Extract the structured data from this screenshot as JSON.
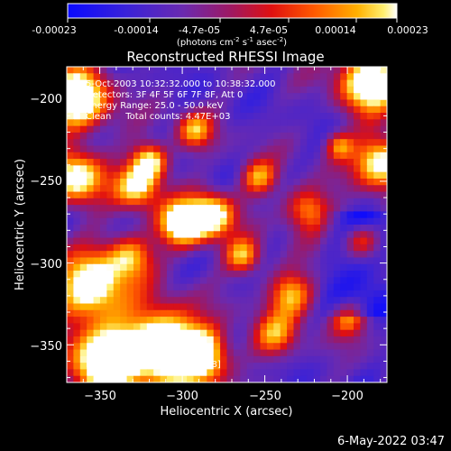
{
  "colors": {
    "background": "#000000",
    "foreground": "#ffffff"
  },
  "colorbar": {
    "tick_labels": [
      "-0.00023",
      "-0.00014",
      "-4.7e-05",
      "4.7e-05",
      "0.00014",
      "0.00023"
    ],
    "unit_label_parts": [
      "(photons cm",
      "-2",
      " s",
      "-1",
      " asec",
      "-2",
      ")"
    ]
  },
  "chart_data": {
    "type": "heatmap",
    "title": "Reconstructed RHESSI Image",
    "xlabel": "Heliocentric X (arcsec)",
    "ylabel": "Heliocentric Y (arcsec)",
    "xlim": [
      -370,
      -176
    ],
    "ylim": [
      -373,
      -180
    ],
    "x_ticks": [
      -350,
      -300,
      -250,
      -200
    ],
    "y_ticks": [
      -350,
      -300,
      -250,
      -200
    ],
    "x_tick_labels": [
      "−350",
      "−300",
      "−250",
      "−200"
    ],
    "y_tick_labels": [
      "−350",
      "−300",
      "−250",
      "−200"
    ],
    "colormap": "rainbow-like (blue → purple → red → orange → yellow → white)",
    "value_range": [
      -0.00023,
      0.00023
    ],
    "annotations": [
      "5-Oct-2003 10:32:32.000 to 10:38:32.000",
      "Detectors: 3F 4F 5F 6F 7F 8F, Att 0",
      "Energy Range: 25.0 - 50.0 keV",
      "Clean     Total counts: 4.47E+03"
    ],
    "peak_label": "Position of Peak = [-319,-368]",
    "peak_position": [
      -319,
      -368
    ]
  },
  "footer": {
    "timestamp": "6-May-2022 03:47"
  }
}
